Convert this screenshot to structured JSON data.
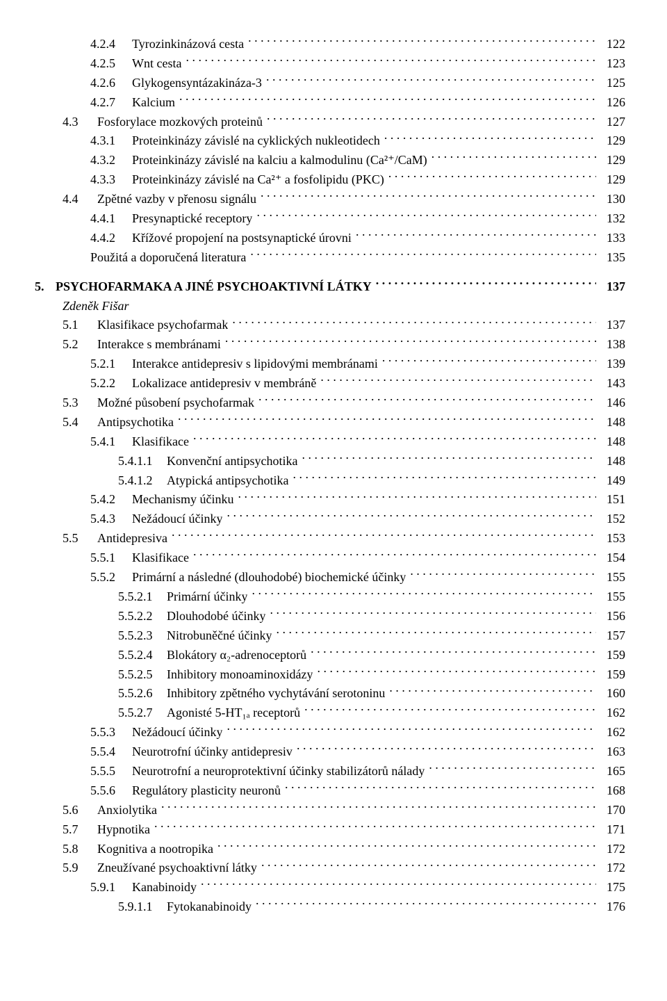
{
  "chapter5": {
    "num": "5.",
    "title": "PSYCHOFARMAKA A JINÉ PSYCHOAKTIVNÍ LÁTKY",
    "page": "137",
    "author": "Zdeněk Fišar"
  },
  "lines": [
    {
      "num": "4.2.4",
      "label": "Tyrozinkinázová cesta",
      "page": "122",
      "indent": 2,
      "col": 2
    },
    {
      "num": "4.2.5",
      "label": "Wnt cesta",
      "page": "123",
      "indent": 2,
      "col": 2
    },
    {
      "num": "4.2.6",
      "label": "Glykogensyntázakináza-3",
      "page": "125",
      "indent": 2,
      "col": 2
    },
    {
      "num": "4.2.7",
      "label": "Kalcium",
      "page": "126",
      "indent": 2,
      "col": 2
    },
    {
      "num": "4.3",
      "label": "Fosforylace mozkových proteinů",
      "page": "127",
      "indent": 1,
      "col": 1
    },
    {
      "num": "4.3.1",
      "label": "Proteinkinázy závislé na cyklických nukleotidech",
      "page": "129",
      "indent": 2,
      "col": 2
    },
    {
      "num": "4.3.2",
      "label": "Proteinkinázy závislé na kalciu a kalmodulinu (Ca²⁺/CaM)",
      "page": "129",
      "indent": 2,
      "col": 2
    },
    {
      "num": "4.3.3",
      "label": "Proteinkinázy závislé na Ca²⁺ a fosfolipidu (PKC)",
      "page": "129",
      "indent": 2,
      "col": 2
    },
    {
      "num": "4.4",
      "label": "Zpětné vazby v přenosu signálu",
      "page": "130",
      "indent": 1,
      "col": 1
    },
    {
      "num": "4.4.1",
      "label": "Presynaptické receptory",
      "page": "132",
      "indent": 2,
      "col": 2
    },
    {
      "num": "4.4.2",
      "label": "Křížové propojení na postsynaptické úrovni",
      "page": "133",
      "indent": 2,
      "col": 2
    },
    {
      "num": "",
      "label": "Použitá a doporučená literatura",
      "page": "135",
      "indent": 2,
      "col": 0
    },
    {
      "num": "5.1",
      "label": "Klasifikace psychofarmak",
      "page": "137",
      "indent": 1,
      "col": 1
    },
    {
      "num": "5.2",
      "label": "Interakce s membránami",
      "page": "138",
      "indent": 1,
      "col": 1
    },
    {
      "num": "5.2.1",
      "label": "Interakce antidepresiv s lipidovými membránami",
      "page": "139",
      "indent": 2,
      "col": 2
    },
    {
      "num": "5.2.2",
      "label": "Lokalizace antidepresiv v membráně",
      "page": "143",
      "indent": 2,
      "col": 2
    },
    {
      "num": "5.3",
      "label": "Možné působení psychofarmak",
      "page": "146",
      "indent": 1,
      "col": 1
    },
    {
      "num": "5.4",
      "label": "Antipsychotika",
      "page": "148",
      "indent": 1,
      "col": 1
    },
    {
      "num": "5.4.1",
      "label": "Klasifikace",
      "page": "148",
      "indent": 2,
      "col": 2
    },
    {
      "num": "5.4.1.1",
      "label": "Konvenční antipsychotika",
      "page": "148",
      "indent": 3,
      "col": 3
    },
    {
      "num": "5.4.1.2",
      "label": "Atypická antipsychotika",
      "page": "149",
      "indent": 3,
      "col": 3
    },
    {
      "num": "5.4.2",
      "label": "Mechanismy účinku",
      "page": "151",
      "indent": 2,
      "col": 2
    },
    {
      "num": "5.4.3",
      "label": "Nežádoucí účinky",
      "page": "152",
      "indent": 2,
      "col": 2
    },
    {
      "num": "5.5",
      "label": "Antidepresiva",
      "page": "153",
      "indent": 1,
      "col": 1
    },
    {
      "num": "5.5.1",
      "label": "Klasifikace",
      "page": "154",
      "indent": 2,
      "col": 2
    },
    {
      "num": "5.5.2",
      "label": "Primární a následné (dlouhodobé) biochemické účinky",
      "page": "155",
      "indent": 2,
      "col": 2
    },
    {
      "num": "5.5.2.1",
      "label": "Primární účinky",
      "page": "155",
      "indent": 3,
      "col": 3
    },
    {
      "num": "5.5.2.2",
      "label": "Dlouhodobé účinky",
      "page": "156",
      "indent": 3,
      "col": 3
    },
    {
      "num": "5.5.2.3",
      "label": "Nitrobuněčné účinky",
      "page": "157",
      "indent": 3,
      "col": 3
    },
    {
      "num": "5.5.2.4",
      "label": "Blokátory α₂-adrenoceptorů",
      "page": "159",
      "indent": 3,
      "col": 3
    },
    {
      "num": "5.5.2.5",
      "label": "Inhibitory monoaminoxidázy",
      "page": "159",
      "indent": 3,
      "col": 3
    },
    {
      "num": "5.5.2.6",
      "label": "Inhibitory zpětného vychytávání serotoninu",
      "page": "160",
      "indent": 3,
      "col": 3
    },
    {
      "num": "5.5.2.7",
      "label": "Agonisté 5-HT₁ₐ receptorů",
      "page": "162",
      "indent": 3,
      "col": 3
    },
    {
      "num": "5.5.3",
      "label": "Nežádoucí účinky",
      "page": "162",
      "indent": 2,
      "col": 2
    },
    {
      "num": "5.5.4",
      "label": "Neurotrofní účinky antidepresiv",
      "page": "163",
      "indent": 2,
      "col": 2
    },
    {
      "num": "5.5.5",
      "label": "Neurotrofní a neuroprotektivní účinky stabilizátorů nálady",
      "page": "165",
      "indent": 2,
      "col": 2
    },
    {
      "num": "5.5.6",
      "label": "Regulátory plasticity neuronů",
      "page": "168",
      "indent": 2,
      "col": 2
    },
    {
      "num": "5.6",
      "label": "Anxiolytika",
      "page": "170",
      "indent": 1,
      "col": 1
    },
    {
      "num": "5.7",
      "label": "Hypnotika",
      "page": "171",
      "indent": 1,
      "col": 1
    },
    {
      "num": "5.8",
      "label": "Kognitiva a nootropika",
      "page": "172",
      "indent": 1,
      "col": 1
    },
    {
      "num": "5.9",
      "label": "Zneužívané psychoaktivní látky",
      "page": "172",
      "indent": 1,
      "col": 1
    },
    {
      "num": "5.9.1",
      "label": "Kanabinoidy",
      "page": "175",
      "indent": 2,
      "col": 2
    },
    {
      "num": "5.9.1.1",
      "label": "Fytokanabinoidy",
      "page": "176",
      "indent": 3,
      "col": 3
    }
  ]
}
